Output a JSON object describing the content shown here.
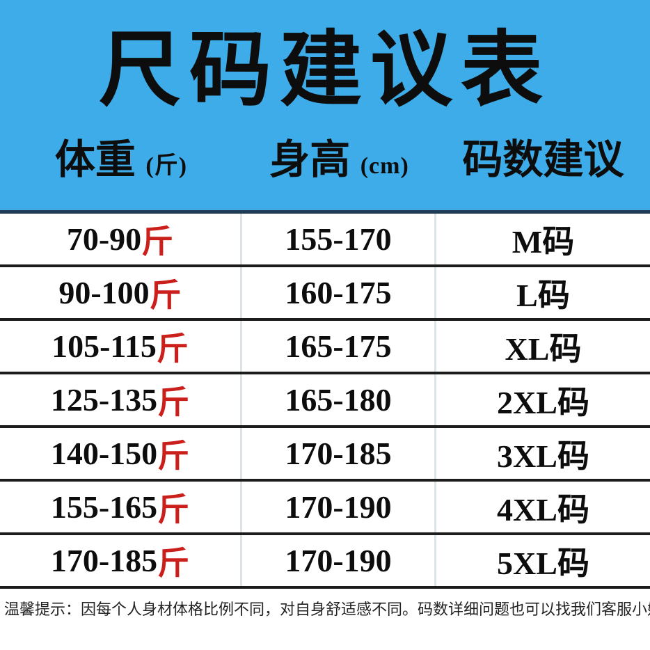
{
  "title": "尺码建议表",
  "header": {
    "weight_label": "体重",
    "weight_unit": "(斤)",
    "height_label": "身高",
    "height_unit": "(cm)",
    "size_label": "码数建议"
  },
  "rows": [
    {
      "weight": "70-90",
      "unit": "斤",
      "height": "155-170",
      "size": "M码"
    },
    {
      "weight": "90-100",
      "unit": "斤",
      "height": "160-175",
      "size": "L码"
    },
    {
      "weight": "105-115",
      "unit": "斤",
      "height": "165-175",
      "size": "XL码"
    },
    {
      "weight": "125-135",
      "unit": "斤",
      "height": "165-180",
      "size": "2XL码"
    },
    {
      "weight": "140-150",
      "unit": "斤",
      "height": "170-185",
      "size": "3XL码"
    },
    {
      "weight": "155-165",
      "unit": "斤",
      "height": "170-190",
      "size": "4XL码"
    },
    {
      "weight": "170-185",
      "unit": "斤",
      "height": "170-190",
      "size": "5XL码"
    }
  ],
  "note": "温馨提示：因每个人身材体格比例不同，对自身舒适感不同。码数详细问题也可以找我们客服小妹了解",
  "colors": {
    "header_bg": "#3dace8",
    "header_divider": "#1e3c55",
    "row_line": "#1c1c1c",
    "col_divider": "#dde4e8",
    "accent_red": "#cb1f1c",
    "text_black": "#0d0d0d"
  },
  "chart_data": {
    "type": "table",
    "title": "尺码建议表",
    "columns": [
      "体重(斤)",
      "身高(cm)",
      "码数建议"
    ],
    "rows": [
      [
        "70-90斤",
        "155-170",
        "M码"
      ],
      [
        "90-100斤",
        "160-175",
        "L码"
      ],
      [
        "105-115斤",
        "165-175",
        "XL码"
      ],
      [
        "125-135斤",
        "165-180",
        "2XL码"
      ],
      [
        "140-150斤",
        "170-185",
        "3XL码"
      ],
      [
        "155-165斤",
        "170-190",
        "4XL码"
      ],
      [
        "170-185斤",
        "170-190",
        "5XL码"
      ]
    ],
    "note": "温馨提示：因每个人身材体格比例不同，对自身舒适感不同。码数详细问题也可以找我们客服小妹了解"
  }
}
